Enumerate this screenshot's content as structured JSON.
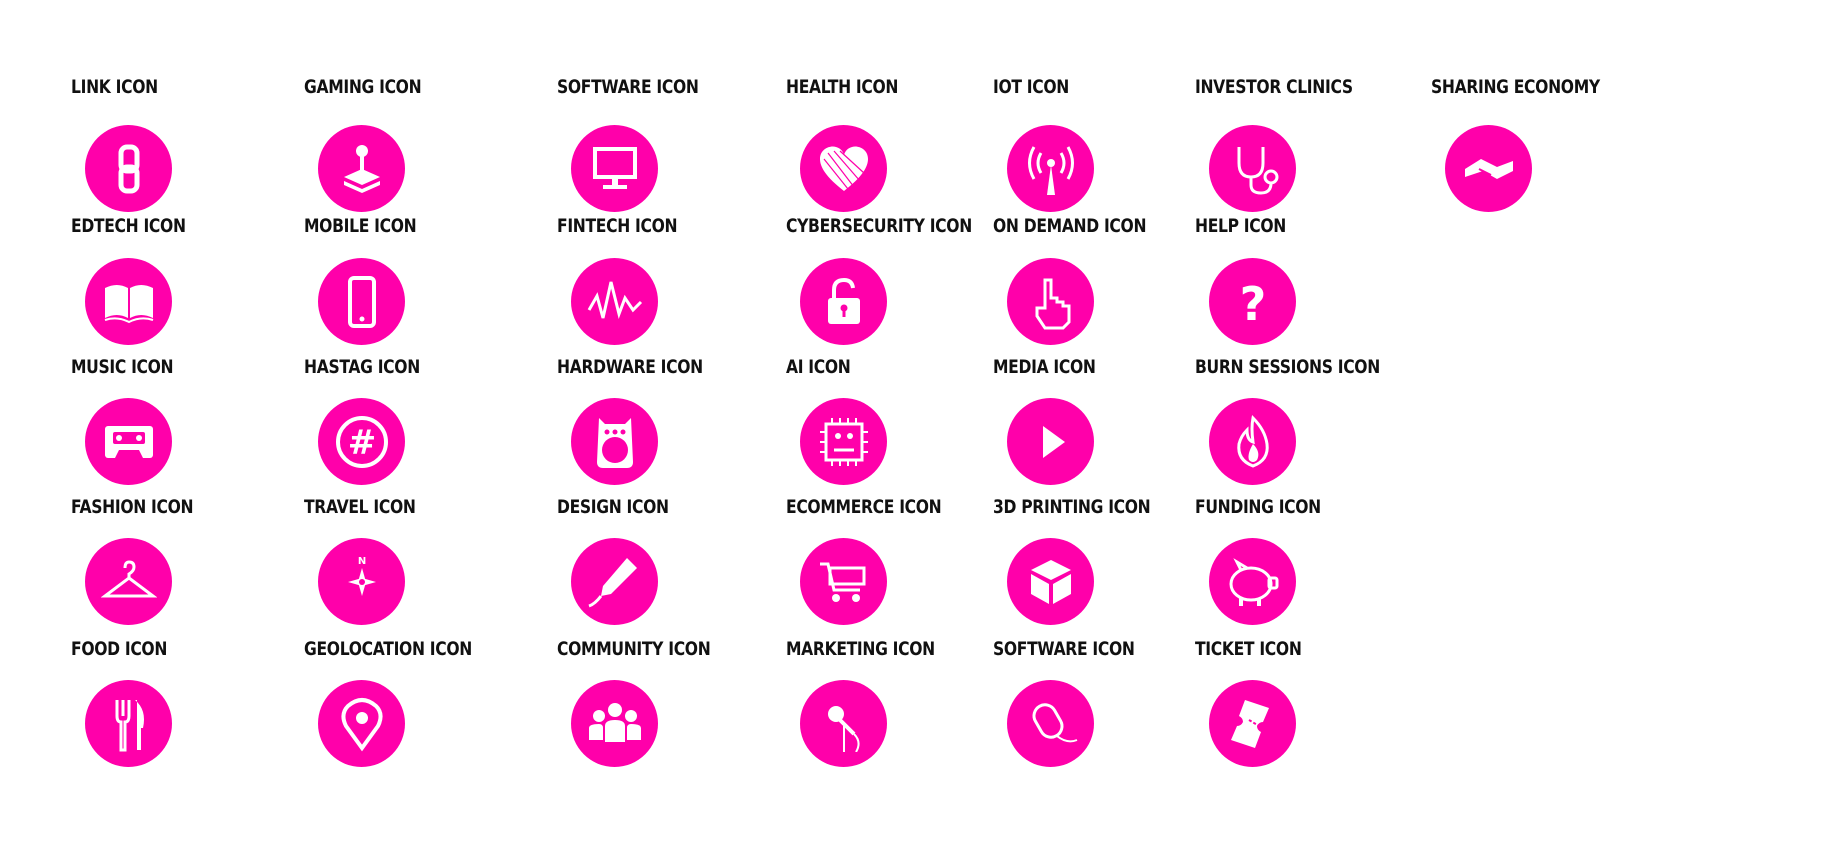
{
  "accent_color": "#ff00aa",
  "rows": [
    [
      {
        "label": "LINK ICON",
        "icon": "link-icon"
      },
      {
        "label": "GAMING ICON",
        "icon": "joystick-icon"
      },
      {
        "label": "SOFTWARE ICON",
        "icon": "monitor-icon"
      },
      {
        "label": "HEALTH ICON",
        "icon": "heart-icon"
      },
      {
        "label": "IOT ICON",
        "icon": "antenna-icon"
      },
      {
        "label": "INVESTOR CLINICS",
        "icon": "stethoscope-icon"
      },
      {
        "label": "SHARING ECONOMY",
        "icon": "handshake-icon"
      }
    ],
    [
      {
        "label": "EDTECH ICON",
        "icon": "book-icon"
      },
      {
        "label": "MOBILE ICON",
        "icon": "phone-icon"
      },
      {
        "label": "FINTECH ICON",
        "icon": "pulse-icon"
      },
      {
        "label": "CYBERSECURITY ICON",
        "icon": "padlock-icon"
      },
      {
        "label": "ON DEMAND ICON",
        "icon": "pointer-hand-icon"
      },
      {
        "label": "HELP ICON",
        "icon": "question-icon"
      }
    ],
    [
      {
        "label": "MUSIC ICON",
        "icon": "cassette-icon"
      },
      {
        "label": "HASTAG ICON",
        "icon": "hashtag-icon"
      },
      {
        "label": "HARDWARE ICON",
        "icon": "speaker-icon"
      },
      {
        "label": "AI ICON",
        "icon": "chip-face-icon"
      },
      {
        "label": "MEDIA ICON",
        "icon": "play-icon"
      },
      {
        "label": "BURN SESSIONS ICON",
        "icon": "flame-icon"
      }
    ],
    [
      {
        "label": "FASHION ICON",
        "icon": "hanger-icon"
      },
      {
        "label": "TRAVEL ICON",
        "icon": "compass-icon"
      },
      {
        "label": "DESIGN ICON",
        "icon": "pencil-icon"
      },
      {
        "label": "ECOMMERCE ICON",
        "icon": "cart-icon"
      },
      {
        "label": "3D PRINTING ICON",
        "icon": "cube-icon"
      },
      {
        "label": "FUNDING ICON",
        "icon": "piggy-bank-icon"
      }
    ],
    [
      {
        "label": "FOOD ICON",
        "icon": "fork-knife-icon"
      },
      {
        "label": "GEOLOCATION ICON",
        "icon": "map-pin-icon"
      },
      {
        "label": "COMMUNITY ICON",
        "icon": "people-icon"
      },
      {
        "label": "MARKETING ICON",
        "icon": "microphone-icon"
      },
      {
        "label": "SOFTWARE ICON",
        "icon": "mouse-icon"
      },
      {
        "label": "TICKET ICON",
        "icon": "ticket-icon"
      }
    ]
  ]
}
